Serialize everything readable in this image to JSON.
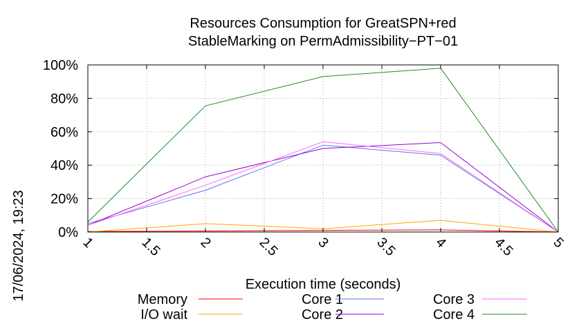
{
  "chart_data": {
    "type": "line",
    "title_line1": "Resources Consumption for GreatSPN+red",
    "title_line2": "StableMarking on PermAdmissibility−PT−01",
    "xlabel": "Execution time (seconds)",
    "ylabel": "",
    "timestamp": "17/06/2024, 19:23",
    "xlim": [
      1,
      5
    ],
    "ylim": [
      0,
      100
    ],
    "x_ticks": [
      "1",
      "1.5",
      "2",
      "2.5",
      "3",
      "3.5",
      "4",
      "4.5",
      "5"
    ],
    "y_ticks": [
      "0%",
      "20%",
      "40%",
      "60%",
      "80%",
      "100%"
    ],
    "grid": true,
    "legend_position": "bottom",
    "x": [
      1,
      2,
      3,
      4,
      5
    ],
    "series": [
      {
        "name": "Memory",
        "color": "#ff0000",
        "values": [
          0.3,
          0.6,
          1.0,
          1.3,
          0
        ]
      },
      {
        "name": "I/O wait",
        "color": "#ffa500",
        "values": [
          0,
          5,
          2,
          7,
          0
        ]
      },
      {
        "name": "Core 1",
        "color": "#5a78e6",
        "values": [
          5,
          25,
          52,
          46,
          0
        ]
      },
      {
        "name": "Core 2",
        "color": "#9400d3",
        "values": [
          4,
          33,
          50,
          53.5,
          0
        ]
      },
      {
        "name": "Core 3",
        "color": "#ff66ff",
        "values": [
          4,
          28,
          54,
          47,
          0
        ]
      },
      {
        "name": "Core 4",
        "color": "#228b22",
        "values": [
          6,
          75.5,
          93,
          98,
          0
        ]
      }
    ]
  }
}
